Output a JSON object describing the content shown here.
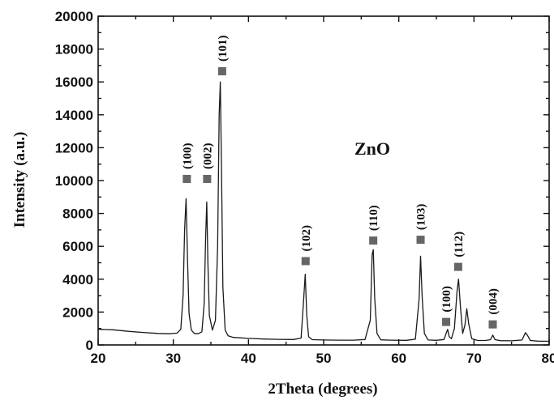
{
  "chart_data": {
    "type": "line",
    "title": "",
    "xlabel": "2Theta (degrees)",
    "ylabel": "Intensity (a.u.)",
    "xlim": [
      20,
      80
    ],
    "ylim": [
      0,
      20000
    ],
    "xticks": [
      20,
      30,
      40,
      50,
      60,
      70,
      80
    ],
    "yticks": [
      0,
      2000,
      4000,
      6000,
      8000,
      10000,
      12000,
      14000,
      16000,
      18000,
      20000
    ],
    "grid": false,
    "annotation": "ZnO",
    "series": [
      {
        "line_color": "#1a1a1a",
        "x": [
          20.0,
          22.0,
          24.0,
          26.0,
          28.0,
          29.5,
          30.5,
          31.0,
          31.3,
          31.5,
          31.7,
          31.9,
          32.1,
          32.4,
          32.8,
          33.3,
          33.8,
          34.1,
          34.3,
          34.45,
          34.6,
          34.8,
          35.2,
          35.6,
          35.9,
          36.1,
          36.25,
          36.4,
          36.6,
          36.9,
          37.3,
          38.0,
          40.0,
          42.0,
          44.0,
          46.0,
          47.0,
          47.35,
          47.55,
          47.75,
          48.0,
          48.5,
          50.0,
          52.0,
          54.0,
          55.5,
          56.2,
          56.45,
          56.6,
          56.8,
          57.1,
          57.6,
          59.0,
          61.0,
          62.2,
          62.7,
          62.9,
          63.1,
          63.4,
          63.9,
          65.0,
          66.0,
          66.3,
          66.5,
          66.7,
          67.0,
          67.4,
          67.75,
          67.95,
          68.2,
          68.5,
          68.8,
          69.05,
          69.3,
          69.7,
          70.5,
          71.5,
          72.2,
          72.5,
          72.8,
          73.5,
          75.0,
          76.4,
          76.85,
          77.1,
          77.5,
          78.5,
          80.0
        ],
        "y": [
          950,
          920,
          830,
          760,
          700,
          680,
          720,
          950,
          3000,
          7000,
          8900,
          5000,
          1900,
          900,
          700,
          680,
          800,
          2500,
          6500,
          8700,
          5000,
          1800,
          900,
          1500,
          6000,
          14000,
          16000,
          11000,
          3500,
          900,
          550,
          460,
          400,
          360,
          340,
          330,
          420,
          2800,
          4300,
          1800,
          500,
          320,
          300,
          290,
          290,
          330,
          1500,
          5500,
          5800,
          2800,
          700,
          310,
          290,
          280,
          350,
          2800,
          5400,
          3000,
          700,
          300,
          280,
          330,
          700,
          950,
          500,
          380,
          1000,
          3300,
          4000,
          2300,
          700,
          1200,
          2200,
          1300,
          380,
          270,
          270,
          320,
          600,
          320,
          260,
          250,
          300,
          750,
          600,
          270,
          230,
          220
        ]
      }
    ],
    "peak_markers": [
      {
        "label": "(100)",
        "x": 31.8,
        "y": 10100
      },
      {
        "label": "(002)",
        "x": 34.5,
        "y": 10100
      },
      {
        "label": "(101)",
        "x": 36.5,
        "y": 16650
      },
      {
        "label": "(102)",
        "x": 47.6,
        "y": 5100
      },
      {
        "label": "(110)",
        "x": 56.6,
        "y": 6350
      },
      {
        "label": "(103)",
        "x": 62.9,
        "y": 6400
      },
      {
        "label": "(100)",
        "x": 66.3,
        "y": 1400
      },
      {
        "label": "(112)",
        "x": 67.9,
        "y": 4750
      },
      {
        "label": "(004)",
        "x": 72.5,
        "y": 1250
      }
    ],
    "marker_color": "#666666"
  }
}
